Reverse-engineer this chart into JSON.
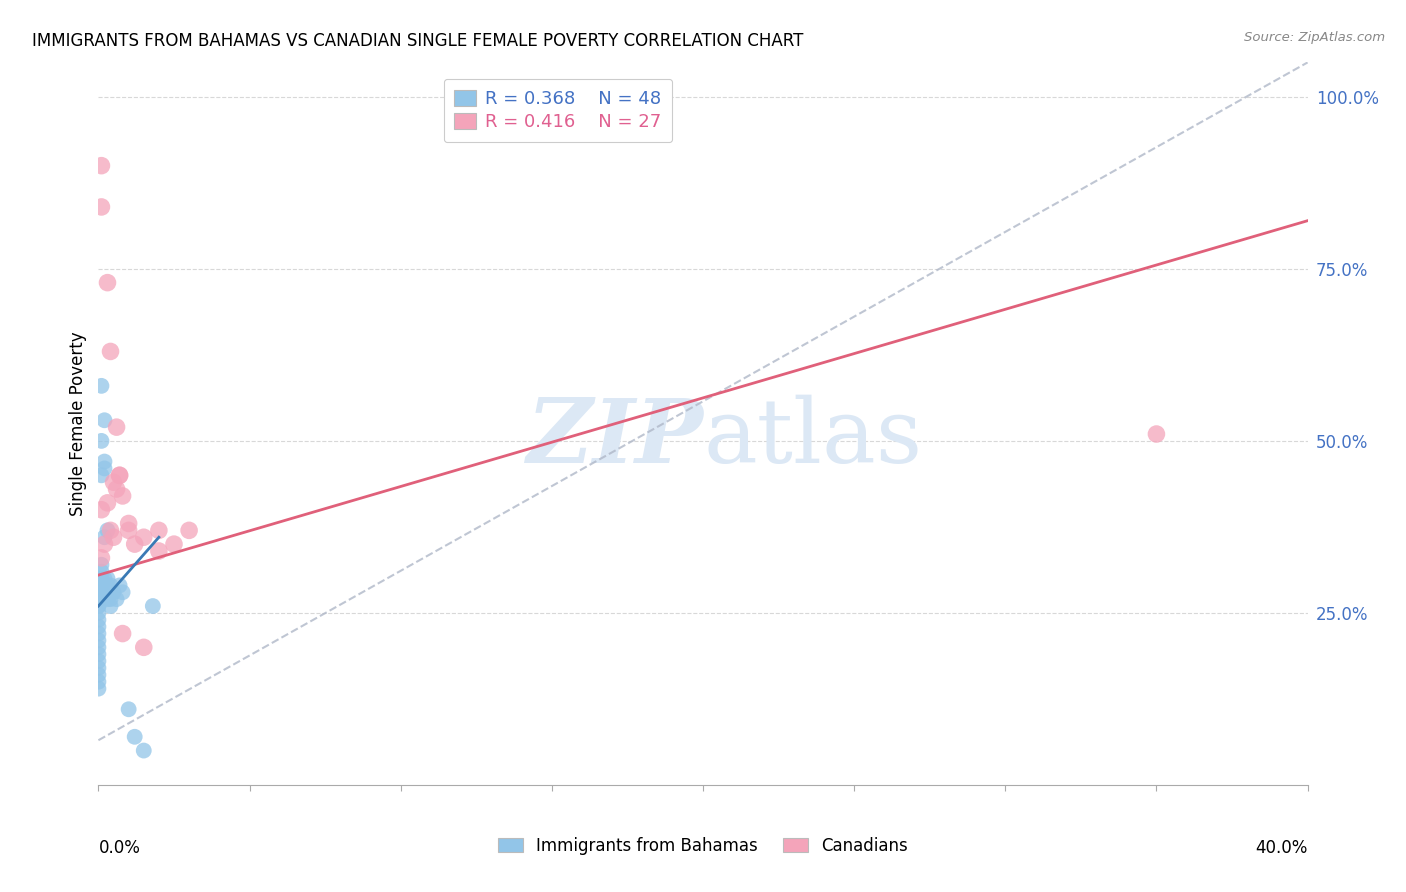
{
  "title": "IMMIGRANTS FROM BAHAMAS VS CANADIAN SINGLE FEMALE POVERTY CORRELATION CHART",
  "source": "Source: ZipAtlas.com",
  "ylabel": "Single Female Poverty",
  "legend_blue_r": "R = 0.368",
  "legend_blue_n": "N = 48",
  "legend_pink_r": "R = 0.416",
  "legend_pink_n": "N = 27",
  "legend_label_blue": "Immigrants from Bahamas",
  "legend_label_pink": "Canadians",
  "blue_color": "#92c5e8",
  "pink_color": "#f4a4ba",
  "blue_line_color": "#3a7ab5",
  "pink_line_color": "#e0607a",
  "watermark_color": "#dce8f5",
  "xmin": 0.0,
  "xmax": 0.4,
  "ymin": 0.0,
  "ymax": 1.05,
  "blue_x": [
    0.0,
    0.0,
    0.0,
    0.0,
    0.0,
    0.0,
    0.0,
    0.0,
    0.0,
    0.0,
    0.0,
    0.0,
    0.0,
    0.0,
    0.0,
    0.0,
    0.0,
    0.0,
    0.0,
    0.0,
    0.001,
    0.001,
    0.001,
    0.001,
    0.001,
    0.002,
    0.002,
    0.002,
    0.003,
    0.003,
    0.004,
    0.004,
    0.005,
    0.006,
    0.007,
    0.008,
    0.01,
    0.012,
    0.015,
    0.018,
    0.001,
    0.002,
    0.003,
    0.004,
    0.001,
    0.001,
    0.002,
    0.003
  ],
  "blue_y": [
    0.27,
    0.28,
    0.26,
    0.25,
    0.24,
    0.23,
    0.22,
    0.21,
    0.2,
    0.19,
    0.18,
    0.17,
    0.16,
    0.15,
    0.14,
    0.29,
    0.3,
    0.28,
    0.27,
    0.26,
    0.3,
    0.31,
    0.29,
    0.58,
    0.5,
    0.47,
    0.53,
    0.46,
    0.37,
    0.29,
    0.29,
    0.27,
    0.28,
    0.27,
    0.29,
    0.28,
    0.11,
    0.07,
    0.05,
    0.26,
    0.32,
    0.3,
    0.27,
    0.26,
    0.28,
    0.45,
    0.36,
    0.3
  ],
  "pink_x": [
    0.001,
    0.001,
    0.002,
    0.003,
    0.004,
    0.005,
    0.006,
    0.007,
    0.008,
    0.01,
    0.012,
    0.015,
    0.02,
    0.025,
    0.03,
    0.35,
    0.001,
    0.003,
    0.004,
    0.005,
    0.006,
    0.007,
    0.008,
    0.01,
    0.015,
    0.02,
    0.001
  ],
  "pink_y": [
    0.33,
    0.4,
    0.35,
    0.41,
    0.37,
    0.36,
    0.43,
    0.45,
    0.42,
    0.37,
    0.35,
    0.36,
    0.37,
    0.35,
    0.37,
    0.51,
    0.84,
    0.73,
    0.63,
    0.44,
    0.52,
    0.45,
    0.22,
    0.38,
    0.2,
    0.34,
    0.9
  ],
  "pink_line_x0": 0.0,
  "pink_line_y0": 0.305,
  "pink_line_x1": 0.4,
  "pink_line_y1": 0.82,
  "blue_line_x0": 0.0,
  "blue_line_y0": 0.26,
  "blue_line_x1": 0.02,
  "blue_line_y1": 0.36,
  "ref_line_x0": 0.0,
  "ref_line_y0": 0.065,
  "ref_line_x1": 0.4,
  "ref_line_y1": 1.05
}
